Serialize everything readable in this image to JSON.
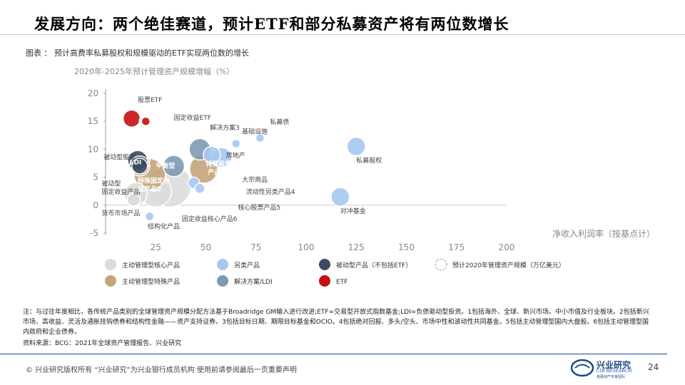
{
  "title": "发展方向：两个绝佳赛道，预计ETF和部分私募资产将有两位数增长",
  "subtitle": "图表 ： 预计高费率私募股权和规模驱动的ETF实现两位数的增长",
  "chart_data": {
    "type": "bubble",
    "ylabel": "2020年-2025年预计管理资产规模增幅（%）",
    "xlabel": "净收入利润率（按基点计）",
    "xlim": [
      0,
      200
    ],
    "ylim": [
      -5,
      20
    ],
    "x_ticks": [
      25,
      50,
      75,
      100,
      125,
      150,
      175,
      200
    ],
    "y_ticks": [
      -5,
      0,
      5,
      10,
      15,
      20
    ],
    "colors": {
      "core": "#dcdcdc",
      "special": "#c4a47a",
      "alt": "#a6c8ee",
      "solution": "#7e9ab1",
      "passive": "#3c4a62",
      "etf": "#c41010"
    },
    "bubbles": [
      {
        "cat": "core",
        "label": "核心股票产品5",
        "x": 32,
        "y": 3.5,
        "size": 30
      },
      {
        "cat": "core",
        "label": "固定收益核心产品6",
        "x": 25,
        "y": 2.5,
        "size": 22
      },
      {
        "cat": "core",
        "label": "被动型固定收益产品",
        "x": 15,
        "y": 2,
        "size": 16
      },
      {
        "cat": "special",
        "label": "特殊固定收益产品2",
        "x": 22,
        "y": 5.5,
        "size": 22
      },
      {
        "cat": "special",
        "label": "特殊股票产品1",
        "x": 49,
        "y": 6.5,
        "size": 20
      },
      {
        "cat": "alt",
        "label": "另类产品",
        "x": 58,
        "y": 8.5,
        "size": 14
      },
      {
        "cat": "alt",
        "label": "大宗商品",
        "x": 44,
        "y": 4,
        "size": 8
      },
      {
        "cat": "alt",
        "label": "流动性另类产品4",
        "x": 47,
        "y": 3,
        "size": 7
      },
      {
        "cat": "alt",
        "label": "基础设施",
        "x": 65,
        "y": 11,
        "size": 6
      },
      {
        "cat": "alt",
        "label": "私募债",
        "x": 77,
        "y": 12,
        "size": 6
      },
      {
        "cat": "alt",
        "label": "房地产",
        "x": 53,
        "y": 9,
        "size": 12
      },
      {
        "cat": "alt",
        "label": "私募股权",
        "x": 125,
        "y": 10.5,
        "size": 13
      },
      {
        "cat": "alt",
        "label": "对冲基金",
        "x": 117,
        "y": 1.5,
        "size": 13
      },
      {
        "cat": "alt",
        "label": "结构化产品",
        "x": 22,
        "y": -2,
        "size": 6
      },
      {
        "cat": "solution",
        "label": "平衡型",
        "x": 34,
        "y": 7,
        "size": 15
      },
      {
        "cat": "solution",
        "label": "解决方案3",
        "x": 47,
        "y": 10,
        "size": 15
      },
      {
        "cat": "passive",
        "label": "被动股票",
        "x": 16,
        "y": 8,
        "size": 14
      },
      {
        "cat": "passive",
        "label": "LDI",
        "x": 17,
        "y": 7,
        "size": 11
      },
      {
        "cat": "etf",
        "label": "股票ETF",
        "x": 13,
        "y": 15.5,
        "size": 12
      },
      {
        "cat": "etf",
        "label": "固定收益ETF",
        "x": 20,
        "y": 15,
        "size": 6
      },
      {
        "cat": "core",
        "label": "货币市场产品",
        "x": 14,
        "y": 1,
        "size": 9
      }
    ],
    "plot_labels": [
      {
        "text": "股票ETF",
        "x": 16,
        "y": 18.5
      },
      {
        "text": "固定收益ETF",
        "x": 34,
        "y": 15.3
      },
      {
        "text": "解决方案3",
        "x": 52,
        "y": 13.5
      },
      {
        "text": "基础设施",
        "x": 68,
        "y": 12.8
      },
      {
        "text": "私募债",
        "x": 82,
        "y": 14.5
      },
      {
        "text": "被动型股票",
        "x": -1,
        "y": 8.2
      },
      {
        "text": "LDI",
        "x": 12,
        "y": 7.3
      },
      {
        "text": "平衡型",
        "x": 25,
        "y": 6.7
      },
      {
        "text": "特殊股票",
        "x": 50,
        "y": 7.0
      },
      {
        "text": "产品1",
        "x": 51,
        "y": 5.5
      },
      {
        "text": "房地产",
        "x": 60,
        "y": 8.5
      },
      {
        "text": "被动型",
        "x": -2,
        "y": 3.5
      },
      {
        "text": "固定收益产品",
        "x": -2,
        "y": 2.0
      },
      {
        "text": "特殊固定收",
        "x": 16,
        "y": 4.0
      },
      {
        "text": "益产品2",
        "x": 16,
        "y": 2.5
      },
      {
        "text": "大宗商品",
        "x": 68,
        "y": 4.2
      },
      {
        "text": "流动性另类产品4",
        "x": 70,
        "y": 2.0
      },
      {
        "text": "核心股票产品5",
        "x": 66,
        "y": -0.8
      },
      {
        "text": "固定收益核心产品6",
        "x": 38,
        "y": -2.8
      },
      {
        "text": "货币市场产品",
        "x": -2,
        "y": -1.8
      },
      {
        "text": "结构化产品",
        "x": 21,
        "y": -4.2
      },
      {
        "text": "私募股权",
        "x": 125,
        "y": 7.6
      },
      {
        "text": "对冲基金",
        "x": 117,
        "y": -1.4
      }
    ],
    "legend": [
      {
        "cat": "core",
        "label": "主动管理型核心产品"
      },
      {
        "cat": "alt",
        "label": "另类产品"
      },
      {
        "cat": "passive",
        "label": "被动型产品（不包括ETF）"
      },
      {
        "cat": "size",
        "label": "预计2020年管理资产规模（万亿美元）"
      },
      {
        "cat": "special",
        "label": "主动管理型特殊产品"
      },
      {
        "cat": "solution",
        "label": "解决方案/LDI"
      },
      {
        "cat": "etf",
        "label": "ETF"
      }
    ]
  },
  "notes": "注：与过往年度相比，各传统产品类别的全球管理资产规模分配方法基于Broadridge GM输入进行改进;ETF=交易型开放式指数基金;LDI=负债驱动型投资。1包括海外、全球、新兴市场。中小市值及行业板块。2包括新兴市场、高收益、灵活及通胀挂钩债券和结构性金融——资产支持证券。3包括目标日期、期限目标基金和OCIO。4包括绝对回报、多头/空头、市场中性和波动性共同基金。5包括主动管理型国内大盘股。6包括主动管理型国内政府和企业债券。",
  "source": "资料来源：BCG：2021年全球资产管理报告、兴业研究",
  "footer": "© 兴业研究版权所有 “兴业研究”为兴业银行成员机构 使用前请参阅最后一页重要声明",
  "logo_cn": "兴业研究",
  "logo_en": "CIB RESEARCH",
  "logo_sub": "金融资产专家团队",
  "page_number": "24"
}
